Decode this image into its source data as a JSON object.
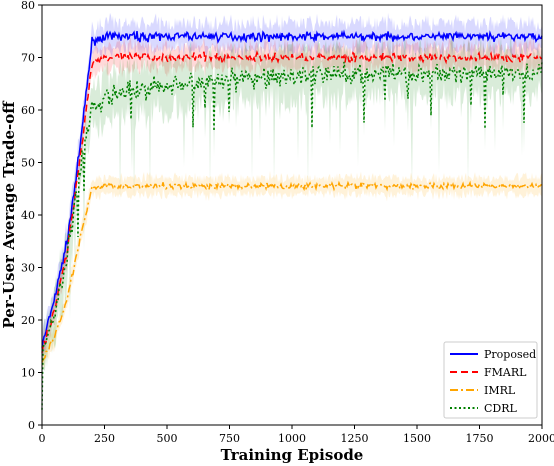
{
  "chart_data": {
    "type": "line",
    "title": "",
    "xlabel": "Training Episode",
    "ylabel": "Per-User Average Trade-off",
    "xlim": [
      0,
      2000
    ],
    "ylim": [
      0,
      80
    ],
    "x_ticks": [
      0,
      250,
      500,
      750,
      1000,
      1250,
      1500,
      1750,
      2000
    ],
    "y_ticks": [
      0,
      10,
      20,
      30,
      40,
      50,
      60,
      70,
      80
    ],
    "legend_position": "bottom-right",
    "grid": false,
    "series": [
      {
        "name": "Proposed",
        "color": "#0000ff",
        "style": "solid",
        "x": [
          0,
          50,
          100,
          150,
          200,
          250,
          300,
          400,
          500,
          600,
          700,
          800,
          900,
          1000,
          1100,
          1200,
          1300,
          1400,
          1500,
          1600,
          1700,
          1800,
          1900,
          2000
        ],
        "values": [
          15,
          24,
          35,
          52,
          73,
          74,
          74,
          74,
          74,
          74,
          74,
          74,
          74,
          74,
          74,
          74,
          74,
          74,
          74,
          74,
          74,
          74,
          74,
          74
        ]
      },
      {
        "name": "FMARL",
        "color": "#ff0000",
        "style": "dashed",
        "x": [
          0,
          50,
          100,
          150,
          200,
          250,
          300,
          400,
          500,
          600,
          700,
          800,
          900,
          1000,
          1100,
          1200,
          1300,
          1400,
          1500,
          1600,
          1700,
          1800,
          1900,
          2000
        ],
        "values": [
          14,
          22,
          33,
          50,
          69,
          70,
          70,
          70,
          70,
          70,
          70,
          70,
          70,
          70,
          70,
          70,
          70,
          70,
          70,
          70,
          70,
          70,
          70,
          70
        ]
      },
      {
        "name": "IMRL",
        "color": "#ffa500",
        "style": "dashdot",
        "x": [
          0,
          50,
          100,
          150,
          200,
          250,
          300,
          400,
          500,
          600,
          700,
          800,
          900,
          1000,
          1100,
          1200,
          1300,
          1400,
          1500,
          1600,
          1700,
          1800,
          1900,
          2000
        ],
        "values": [
          12,
          17,
          24,
          35,
          45,
          45.5,
          45.5,
          45.5,
          45.5,
          45.5,
          45.5,
          45.5,
          45.5,
          45.5,
          45.5,
          45.5,
          45.5,
          45.5,
          45.5,
          45.5,
          45.5,
          45.5,
          45.5,
          45.5
        ]
      },
      {
        "name": "CDRL",
        "color": "#008000",
        "style": "dotted",
        "x": [
          0,
          50,
          100,
          150,
          200,
          250,
          300,
          400,
          500,
          600,
          700,
          800,
          900,
          1000,
          1100,
          1200,
          1300,
          1400,
          1500,
          1600,
          1700,
          1800,
          1900,
          2000
        ],
        "values": [
          14,
          21,
          32,
          48,
          61,
          62,
          63,
          64,
          65,
          65,
          66,
          66,
          66,
          66,
          67,
          67,
          67,
          67,
          67,
          67,
          67,
          67,
          67,
          67
        ]
      }
    ]
  }
}
